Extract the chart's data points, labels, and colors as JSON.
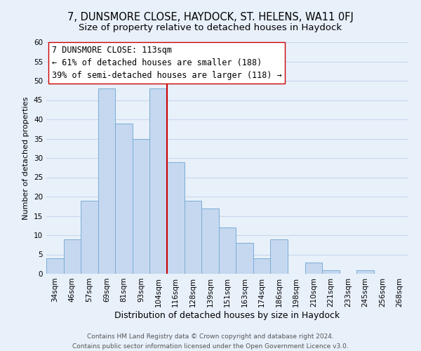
{
  "title": "7, DUNSMORE CLOSE, HAYDOCK, ST. HELENS, WA11 0FJ",
  "subtitle": "Size of property relative to detached houses in Haydock",
  "xlabel": "Distribution of detached houses by size in Haydock",
  "ylabel": "Number of detached properties",
  "bar_labels": [
    "34sqm",
    "46sqm",
    "57sqm",
    "69sqm",
    "81sqm",
    "93sqm",
    "104sqm",
    "116sqm",
    "128sqm",
    "139sqm",
    "151sqm",
    "163sqm",
    "174sqm",
    "186sqm",
    "198sqm",
    "210sqm",
    "221sqm",
    "233sqm",
    "245sqm",
    "256sqm",
    "268sqm"
  ],
  "bar_values": [
    4,
    9,
    19,
    48,
    39,
    35,
    48,
    29,
    19,
    17,
    12,
    8,
    4,
    9,
    0,
    3,
    1,
    0,
    1,
    0,
    0
  ],
  "bar_color": "#c5d8f0",
  "bar_edge_color": "#7aadd4",
  "grid_color": "#c8d8ec",
  "background_color": "#e8f0fa",
  "vline_x_index": 7,
  "vline_color": "#cc0000",
  "annotation_title": "7 DUNSMORE CLOSE: 113sqm",
  "annotation_line1": "← 61% of detached houses are smaller (188)",
  "annotation_line2": "39% of semi-detached houses are larger (118) →",
  "annotation_box_color": "#ffffff",
  "annotation_box_edge": "#cc0000",
  "ylim": [
    0,
    60
  ],
  "yticks": [
    0,
    5,
    10,
    15,
    20,
    25,
    30,
    35,
    40,
    45,
    50,
    55,
    60
  ],
  "footer_line1": "Contains HM Land Registry data © Crown copyright and database right 2024.",
  "footer_line2": "Contains public sector information licensed under the Open Government Licence v3.0.",
  "title_fontsize": 10.5,
  "subtitle_fontsize": 9.5,
  "annotation_fontsize": 8.5,
  "tick_fontsize": 7.5,
  "xlabel_fontsize": 9,
  "ylabel_fontsize": 8,
  "footer_fontsize": 6.5
}
